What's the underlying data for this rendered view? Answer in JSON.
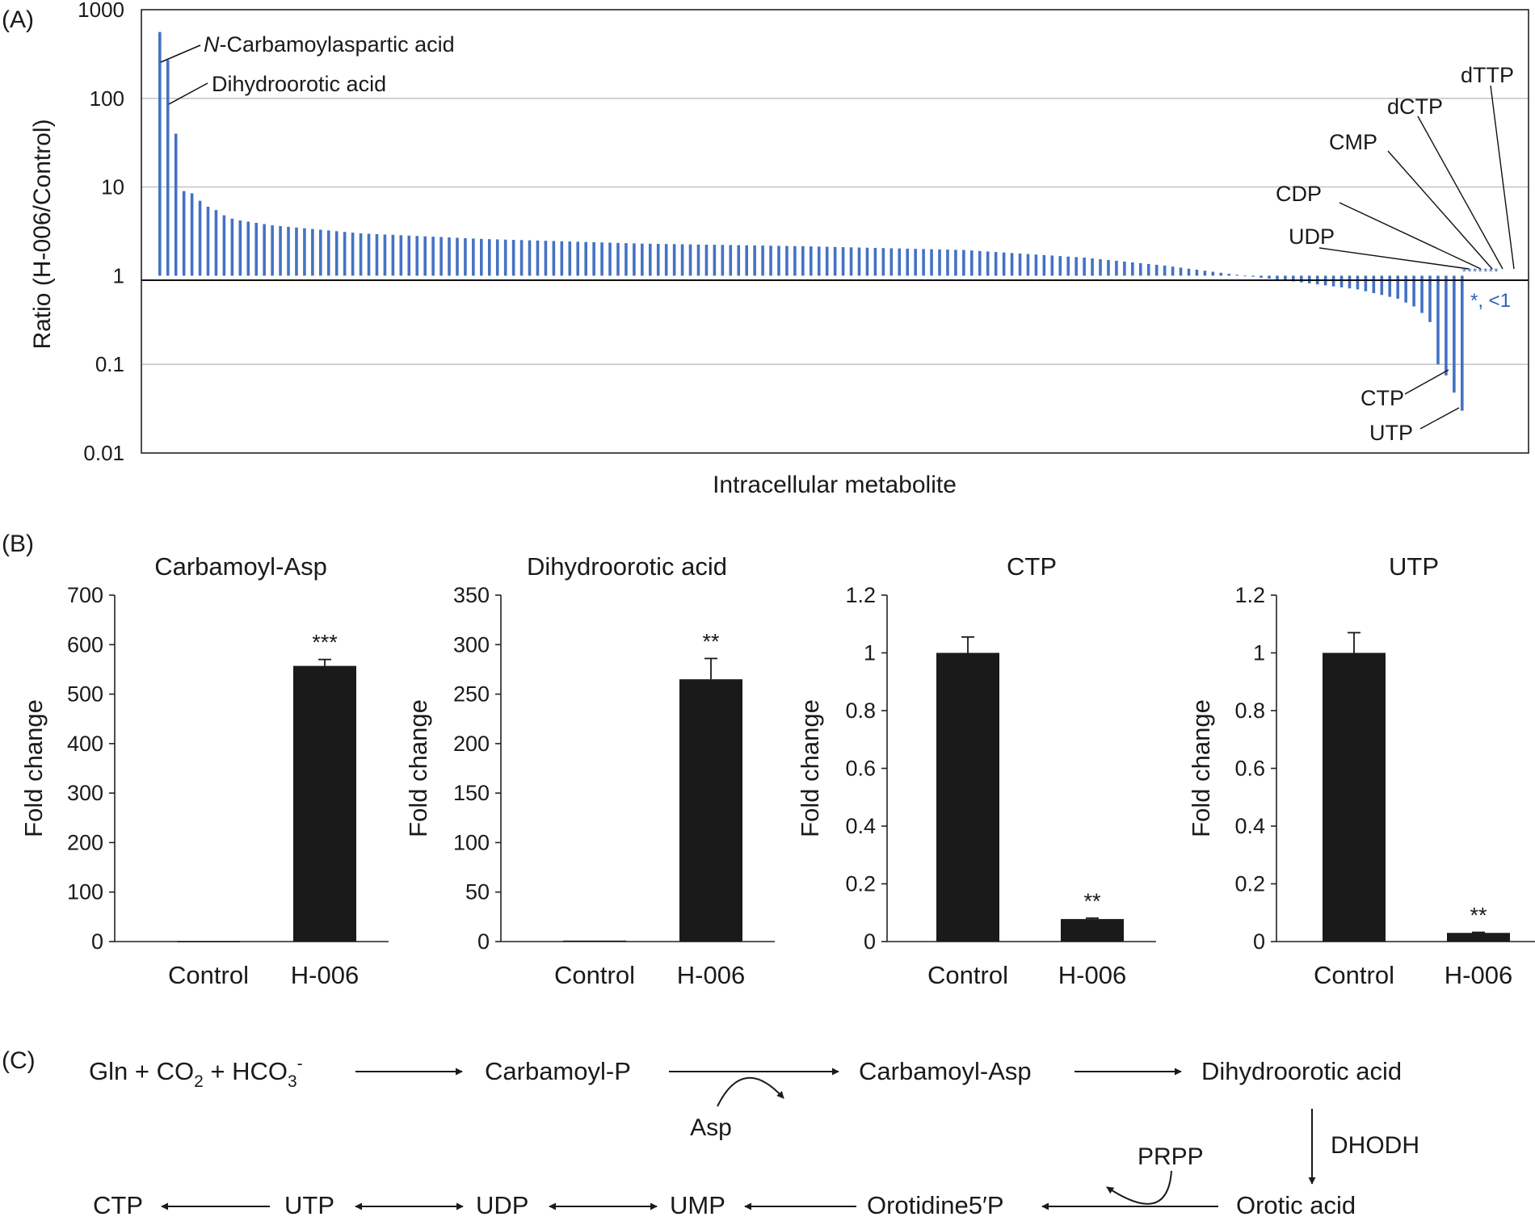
{
  "colors": {
    "bar_blue": "#4472C4",
    "bar_black": "#1a1a1a",
    "axis": "#222222",
    "grid": "#bfbfbf",
    "note_blue": "#2f5fb0"
  },
  "panel_labels": {
    "a": "(A)",
    "b": "(B)",
    "c": "(C)"
  },
  "chart_data": [
    {
      "type": "bar",
      "panel": "A",
      "scale": "log",
      "baseline": 1,
      "xlabel": "Intracellular metabolite",
      "ylabel": "Ratio (H-006/Control)",
      "ylim": [
        0.01,
        1000
      ],
      "yticks": [
        "0.01",
        "0.1",
        "1",
        "10",
        "100",
        "1000"
      ],
      "grid": true,
      "profile": {
        "count": 163,
        "anchors": [
          [
            0,
            560
          ],
          [
            1,
            270
          ],
          [
            2,
            40
          ],
          [
            3,
            9
          ],
          [
            4,
            8.5
          ],
          [
            5,
            7
          ],
          [
            6,
            6
          ],
          [
            7,
            5.5
          ],
          [
            8,
            4.8
          ],
          [
            9,
            4.4
          ],
          [
            10,
            4.2
          ],
          [
            14,
            3.7
          ],
          [
            25,
            3.0
          ],
          [
            40,
            2.6
          ],
          [
            60,
            2.3
          ],
          [
            80,
            2.15
          ],
          [
            100,
            1.95
          ],
          [
            115,
            1.6
          ],
          [
            125,
            1.3
          ],
          [
            133,
            1.05
          ],
          [
            137,
            0.95
          ],
          [
            143,
            0.82
          ],
          [
            149,
            0.7
          ],
          [
            154,
            0.55
          ],
          [
            156,
            0.45
          ],
          [
            157,
            0.38
          ],
          [
            158,
            0.3
          ],
          [
            159,
            0.1
          ],
          [
            160,
            0.075
          ],
          [
            161,
            0.048
          ],
          [
            162,
            0.03
          ]
        ]
      },
      "labeled_bars": [
        {
          "index": 0,
          "label": "N-Carbamoylaspartic acid",
          "label_italic_prefix": "N",
          "label_rest": "-Carbamoylaspartic acid"
        },
        {
          "index": 1,
          "label": "Dihydroorotic acid"
        },
        {
          "index": 160,
          "label": "CTP"
        },
        {
          "index": 162,
          "label": "UTP"
        }
      ],
      "callouts_below_detection": [
        "UDP",
        "CDP",
        "CMP",
        "dCTP",
        "dTTP"
      ],
      "below_detection_marks": "*******",
      "below_detection_note": "*, <1"
    },
    {
      "type": "bar",
      "panel": "B1",
      "title": "Carbamoyl-Asp",
      "categories": [
        "Control",
        "H-006"
      ],
      "values": [
        1,
        557
      ],
      "errors": [
        0,
        13
      ],
      "significance": [
        "",
        "***"
      ],
      "ylabel": "Fold change",
      "ylim": [
        0,
        700
      ],
      "yticks": [
        "0",
        "100",
        "200",
        "300",
        "400",
        "500",
        "600",
        "700"
      ]
    },
    {
      "type": "bar",
      "panel": "B2",
      "title": "Dihydroorotic acid",
      "categories": [
        "Control",
        "H-006"
      ],
      "values": [
        1,
        265
      ],
      "errors": [
        0,
        21
      ],
      "significance": [
        "",
        "**"
      ],
      "ylabel": "Fold change",
      "ylim": [
        0,
        350
      ],
      "yticks": [
        "0",
        "50",
        "100",
        "150",
        "200",
        "250",
        "300",
        "350"
      ]
    },
    {
      "type": "bar",
      "panel": "B3",
      "title": "CTP",
      "categories": [
        "Control",
        "H-006"
      ],
      "values": [
        1,
        0.078
      ],
      "errors": [
        0.055,
        0.003
      ],
      "significance": [
        "",
        "**"
      ],
      "ylabel": "Fold change",
      "ylim": [
        0,
        1.2
      ],
      "yticks": [
        "0",
        "0.2",
        "0.4",
        "0.6",
        "0.8",
        "1",
        "1.2"
      ]
    },
    {
      "type": "bar",
      "panel": "B4",
      "title": "UTP",
      "categories": [
        "Control",
        "H-006"
      ],
      "values": [
        1,
        0.03
      ],
      "errors": [
        0.07,
        0.002
      ],
      "significance": [
        "",
        "**"
      ],
      "ylabel": "Fold change",
      "ylim": [
        0,
        1.2
      ],
      "yticks": [
        "0",
        "0.2",
        "0.4",
        "0.6",
        "0.8",
        "1",
        "1.2"
      ]
    }
  ],
  "pathway": {
    "row1": {
      "substrates": {
        "text": "Gln + CO",
        "sub1": "2",
        "mid": " + HCO",
        "sub2": "3",
        "sup": "-"
      },
      "nodes": [
        "Carbamoyl-P",
        "Carbamoyl-Asp",
        "Dihydroorotic acid"
      ]
    },
    "asp": "Asp",
    "enzyme": "DHODH",
    "prpp": "PRPP",
    "row2": {
      "nodes": [
        "CTP",
        "UTP",
        "UDP",
        "UMP",
        "Orotidine5′P",
        "Orotic acid"
      ]
    }
  }
}
